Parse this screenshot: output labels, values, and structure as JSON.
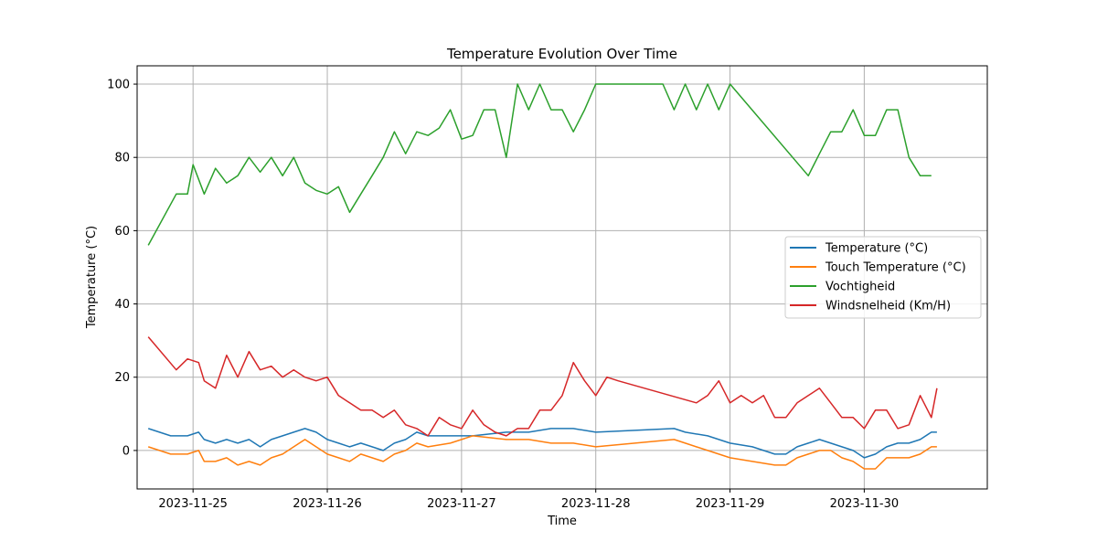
{
  "chart_data": {
    "type": "line",
    "title": "Temperature Evolution Over Time",
    "xlabel": "Time",
    "ylabel": "Temperature (°C)",
    "x_type": "date",
    "xlim": [
      "2023-11-24 14:00",
      "2023-11-30 22:00"
    ],
    "ylim": [
      -10.5,
      105
    ],
    "x_ticks": [
      "2023-11-25",
      "2023-11-26",
      "2023-11-27",
      "2023-11-28",
      "2023-11-29",
      "2023-11-30"
    ],
    "y_ticks": [
      0,
      20,
      40,
      60,
      80,
      100
    ],
    "grid": true,
    "legend_position": "center-right",
    "series": [
      {
        "name": "Temperature (°C)",
        "color": "#1f77b4",
        "points": [
          [
            "2023-11-24 16:00",
            6
          ],
          [
            "2023-11-24 20:00",
            4
          ],
          [
            "2023-11-24 23:00",
            4
          ],
          [
            "2023-11-25 01:00",
            5
          ],
          [
            "2023-11-25 02:00",
            3
          ],
          [
            "2023-11-25 04:00",
            2
          ],
          [
            "2023-11-25 06:00",
            3
          ],
          [
            "2023-11-25 08:00",
            2
          ],
          [
            "2023-11-25 10:00",
            3
          ],
          [
            "2023-11-25 12:00",
            1
          ],
          [
            "2023-11-25 14:00",
            3
          ],
          [
            "2023-11-25 16:00",
            4
          ],
          [
            "2023-11-25 18:00",
            5
          ],
          [
            "2023-11-25 20:00",
            6
          ],
          [
            "2023-11-25 22:00",
            5
          ],
          [
            "2023-11-26 00:00",
            3
          ],
          [
            "2023-11-26 02:00",
            2
          ],
          [
            "2023-11-26 04:00",
            1
          ],
          [
            "2023-11-26 06:00",
            2
          ],
          [
            "2023-11-26 08:00",
            1
          ],
          [
            "2023-11-26 10:00",
            0
          ],
          [
            "2023-11-26 12:00",
            2
          ],
          [
            "2023-11-26 14:00",
            3
          ],
          [
            "2023-11-26 16:00",
            5
          ],
          [
            "2023-11-26 18:00",
            4
          ],
          [
            "2023-11-26 22:00",
            4
          ],
          [
            "2023-11-27 02:00",
            4
          ],
          [
            "2023-11-27 08:00",
            5
          ],
          [
            "2023-11-27 12:00",
            5
          ],
          [
            "2023-11-27 16:00",
            6
          ],
          [
            "2023-11-27 20:00",
            6
          ],
          [
            "2023-11-28 00:00",
            5
          ],
          [
            "2023-11-28 14:00",
            6
          ],
          [
            "2023-11-28 16:00",
            5
          ],
          [
            "2023-11-28 20:00",
            4
          ],
          [
            "2023-11-29 00:00",
            2
          ],
          [
            "2023-11-29 04:00",
            1
          ],
          [
            "2023-11-29 08:00",
            -1
          ],
          [
            "2023-11-29 10:00",
            -1
          ],
          [
            "2023-11-29 12:00",
            1
          ],
          [
            "2023-11-29 14:00",
            2
          ],
          [
            "2023-11-29 16:00",
            3
          ],
          [
            "2023-11-29 18:00",
            2
          ],
          [
            "2023-11-29 20:00",
            1
          ],
          [
            "2023-11-29 22:00",
            0
          ],
          [
            "2023-11-30 00:00",
            -2
          ],
          [
            "2023-11-30 02:00",
            -1
          ],
          [
            "2023-11-30 04:00",
            1
          ],
          [
            "2023-11-30 06:00",
            2
          ],
          [
            "2023-11-30 08:00",
            2
          ],
          [
            "2023-11-30 10:00",
            3
          ],
          [
            "2023-11-30 12:00",
            5
          ],
          [
            "2023-11-30 13:00",
            5
          ]
        ]
      },
      {
        "name": "Touch Temperature (°C)",
        "color": "#ff7f0e",
        "points": [
          [
            "2023-11-24 16:00",
            1
          ],
          [
            "2023-11-24 20:00",
            -1
          ],
          [
            "2023-11-24 23:00",
            -1
          ],
          [
            "2023-11-25 01:00",
            0
          ],
          [
            "2023-11-25 02:00",
            -3
          ],
          [
            "2023-11-25 04:00",
            -3
          ],
          [
            "2023-11-25 06:00",
            -2
          ],
          [
            "2023-11-25 08:00",
            -4
          ],
          [
            "2023-11-25 10:00",
            -3
          ],
          [
            "2023-11-25 12:00",
            -4
          ],
          [
            "2023-11-25 14:00",
            -2
          ],
          [
            "2023-11-25 16:00",
            -1
          ],
          [
            "2023-11-25 18:00",
            1
          ],
          [
            "2023-11-25 20:00",
            3
          ],
          [
            "2023-11-25 22:00",
            1
          ],
          [
            "2023-11-26 00:00",
            -1
          ],
          [
            "2023-11-26 02:00",
            -2
          ],
          [
            "2023-11-26 04:00",
            -3
          ],
          [
            "2023-11-26 06:00",
            -1
          ],
          [
            "2023-11-26 08:00",
            -2
          ],
          [
            "2023-11-26 10:00",
            -3
          ],
          [
            "2023-11-26 12:00",
            -1
          ],
          [
            "2023-11-26 14:00",
            0
          ],
          [
            "2023-11-26 16:00",
            2
          ],
          [
            "2023-11-26 18:00",
            1
          ],
          [
            "2023-11-26 22:00",
            2
          ],
          [
            "2023-11-27 02:00",
            4
          ],
          [
            "2023-11-27 08:00",
            3
          ],
          [
            "2023-11-27 12:00",
            3
          ],
          [
            "2023-11-27 16:00",
            2
          ],
          [
            "2023-11-27 20:00",
            2
          ],
          [
            "2023-11-28 00:00",
            1
          ],
          [
            "2023-11-28 14:00",
            3
          ],
          [
            "2023-11-28 16:00",
            2
          ],
          [
            "2023-11-28 20:00",
            0
          ],
          [
            "2023-11-29 00:00",
            -2
          ],
          [
            "2023-11-29 04:00",
            -3
          ],
          [
            "2023-11-29 08:00",
            -4
          ],
          [
            "2023-11-29 10:00",
            -4
          ],
          [
            "2023-11-29 12:00",
            -2
          ],
          [
            "2023-11-29 14:00",
            -1
          ],
          [
            "2023-11-29 16:00",
            0
          ],
          [
            "2023-11-29 18:00",
            0
          ],
          [
            "2023-11-29 20:00",
            -2
          ],
          [
            "2023-11-29 22:00",
            -3
          ],
          [
            "2023-11-30 00:00",
            -5
          ],
          [
            "2023-11-30 02:00",
            -5
          ],
          [
            "2023-11-30 04:00",
            -2
          ],
          [
            "2023-11-30 06:00",
            -2
          ],
          [
            "2023-11-30 08:00",
            -2
          ],
          [
            "2023-11-30 10:00",
            -1
          ],
          [
            "2023-11-30 12:00",
            1
          ],
          [
            "2023-11-30 13:00",
            1
          ]
        ]
      },
      {
        "name": "Vochtigheid",
        "color": "#2ca02c",
        "points": [
          [
            "2023-11-24 16:00",
            56
          ],
          [
            "2023-11-24 21:00",
            70
          ],
          [
            "2023-11-24 23:00",
            70
          ],
          [
            "2023-11-25 00:00",
            78
          ],
          [
            "2023-11-25 02:00",
            70
          ],
          [
            "2023-11-25 04:00",
            77
          ],
          [
            "2023-11-25 06:00",
            73
          ],
          [
            "2023-11-25 08:00",
            75
          ],
          [
            "2023-11-25 10:00",
            80
          ],
          [
            "2023-11-25 12:00",
            76
          ],
          [
            "2023-11-25 14:00",
            80
          ],
          [
            "2023-11-25 16:00",
            75
          ],
          [
            "2023-11-25 18:00",
            80
          ],
          [
            "2023-11-25 20:00",
            73
          ],
          [
            "2023-11-25 22:00",
            71
          ],
          [
            "2023-11-26 00:00",
            70
          ],
          [
            "2023-11-26 02:00",
            72
          ],
          [
            "2023-11-26 04:00",
            65
          ],
          [
            "2023-11-26 06:00",
            70
          ],
          [
            "2023-11-26 08:00",
            75
          ],
          [
            "2023-11-26 10:00",
            80
          ],
          [
            "2023-11-26 12:00",
            87
          ],
          [
            "2023-11-26 14:00",
            81
          ],
          [
            "2023-11-26 16:00",
            87
          ],
          [
            "2023-11-26 18:00",
            86
          ],
          [
            "2023-11-26 20:00",
            88
          ],
          [
            "2023-11-26 22:00",
            93
          ],
          [
            "2023-11-27 00:00",
            85
          ],
          [
            "2023-11-27 02:00",
            86
          ],
          [
            "2023-11-27 04:00",
            93
          ],
          [
            "2023-11-27 06:00",
            93
          ],
          [
            "2023-11-27 08:00",
            80
          ],
          [
            "2023-11-27 10:00",
            100
          ],
          [
            "2023-11-27 12:00",
            93
          ],
          [
            "2023-11-27 14:00",
            100
          ],
          [
            "2023-11-27 16:00",
            93
          ],
          [
            "2023-11-27 18:00",
            93
          ],
          [
            "2023-11-27 20:00",
            87
          ],
          [
            "2023-11-27 22:00",
            93
          ],
          [
            "2023-11-28 00:00",
            100
          ],
          [
            "2023-11-28 04:00",
            100
          ],
          [
            "2023-11-28 08:00",
            100
          ],
          [
            "2023-11-28 12:00",
            100
          ],
          [
            "2023-11-28 14:00",
            93
          ],
          [
            "2023-11-28 16:00",
            100
          ],
          [
            "2023-11-28 18:00",
            93
          ],
          [
            "2023-11-28 20:00",
            100
          ],
          [
            "2023-11-28 22:00",
            93
          ],
          [
            "2023-11-29 00:00",
            100
          ],
          [
            "2023-11-29 14:00",
            75
          ],
          [
            "2023-11-29 16:00",
            81
          ],
          [
            "2023-11-29 18:00",
            87
          ],
          [
            "2023-11-29 20:00",
            87
          ],
          [
            "2023-11-29 22:00",
            93
          ],
          [
            "2023-11-30 00:00",
            86
          ],
          [
            "2023-11-30 02:00",
            86
          ],
          [
            "2023-11-30 04:00",
            93
          ],
          [
            "2023-11-30 06:00",
            93
          ],
          [
            "2023-11-30 08:00",
            80
          ],
          [
            "2023-11-30 10:00",
            75
          ],
          [
            "2023-11-30 12:00",
            75
          ]
        ]
      },
      {
        "name": "Windsnelheid (Km/H)",
        "color": "#d62728",
        "points": [
          [
            "2023-11-24 16:00",
            31
          ],
          [
            "2023-11-24 21:00",
            22
          ],
          [
            "2023-11-24 23:00",
            25
          ],
          [
            "2023-11-25 01:00",
            24
          ],
          [
            "2023-11-25 02:00",
            19
          ],
          [
            "2023-11-25 04:00",
            17
          ],
          [
            "2023-11-25 06:00",
            26
          ],
          [
            "2023-11-25 08:00",
            20
          ],
          [
            "2023-11-25 10:00",
            27
          ],
          [
            "2023-11-25 12:00",
            22
          ],
          [
            "2023-11-25 14:00",
            23
          ],
          [
            "2023-11-25 16:00",
            20
          ],
          [
            "2023-11-25 18:00",
            22
          ],
          [
            "2023-11-25 20:00",
            20
          ],
          [
            "2023-11-25 22:00",
            19
          ],
          [
            "2023-11-26 00:00",
            20
          ],
          [
            "2023-11-26 02:00",
            15
          ],
          [
            "2023-11-26 04:00",
            13
          ],
          [
            "2023-11-26 06:00",
            11
          ],
          [
            "2023-11-26 08:00",
            11
          ],
          [
            "2023-11-26 10:00",
            9
          ],
          [
            "2023-11-26 12:00",
            11
          ],
          [
            "2023-11-26 14:00",
            7
          ],
          [
            "2023-11-26 16:00",
            6
          ],
          [
            "2023-11-26 18:00",
            4
          ],
          [
            "2023-11-26 20:00",
            9
          ],
          [
            "2023-11-26 22:00",
            7
          ],
          [
            "2023-11-27 00:00",
            6
          ],
          [
            "2023-11-27 02:00",
            11
          ],
          [
            "2023-11-27 04:00",
            7
          ],
          [
            "2023-11-27 06:00",
            5
          ],
          [
            "2023-11-27 08:00",
            4
          ],
          [
            "2023-11-27 10:00",
            6
          ],
          [
            "2023-11-27 12:00",
            6
          ],
          [
            "2023-11-27 14:00",
            11
          ],
          [
            "2023-11-27 16:00",
            11
          ],
          [
            "2023-11-27 18:00",
            15
          ],
          [
            "2023-11-27 20:00",
            24
          ],
          [
            "2023-11-27 22:00",
            19
          ],
          [
            "2023-11-28 00:00",
            15
          ],
          [
            "2023-11-28 02:00",
            20
          ],
          [
            "2023-11-28 04:00",
            19
          ],
          [
            "2023-11-28 18:00",
            13
          ],
          [
            "2023-11-28 20:00",
            15
          ],
          [
            "2023-11-28 22:00",
            19
          ],
          [
            "2023-11-29 00:00",
            13
          ],
          [
            "2023-11-29 02:00",
            15
          ],
          [
            "2023-11-29 04:00",
            13
          ],
          [
            "2023-11-29 06:00",
            15
          ],
          [
            "2023-11-29 08:00",
            9
          ],
          [
            "2023-11-29 10:00",
            9
          ],
          [
            "2023-11-29 12:00",
            13
          ],
          [
            "2023-11-29 14:00",
            15
          ],
          [
            "2023-11-29 16:00",
            17
          ],
          [
            "2023-11-29 18:00",
            13
          ],
          [
            "2023-11-29 20:00",
            9
          ],
          [
            "2023-11-29 22:00",
            9
          ],
          [
            "2023-11-30 00:00",
            6
          ],
          [
            "2023-11-30 02:00",
            11
          ],
          [
            "2023-11-30 04:00",
            11
          ],
          [
            "2023-11-30 06:00",
            6
          ],
          [
            "2023-11-30 08:00",
            7
          ],
          [
            "2023-11-30 10:00",
            15
          ],
          [
            "2023-11-30 12:00",
            9
          ],
          [
            "2023-11-30 13:00",
            17
          ]
        ]
      }
    ]
  }
}
